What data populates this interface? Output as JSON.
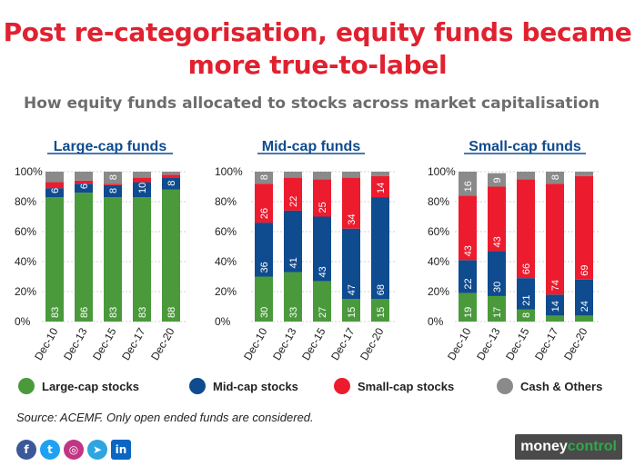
{
  "title_line1": "Post re-categorisation, equity funds became",
  "title_line2": "more true-to-label",
  "subtitle": "How equity funds allocated to stocks across market capitalisation",
  "colors": {
    "large": "#4a9a3c",
    "mid": "#0f4b8f",
    "small": "#ec1c2e",
    "cash": "#8a8a8a",
    "title": "#e0212f"
  },
  "legend": [
    {
      "label": "Large-cap stocks",
      "color": "#4a9a3c"
    },
    {
      "label": "Mid-cap stocks",
      "color": "#0f4b8f"
    },
    {
      "label": "Small-cap stocks",
      "color": "#ec1c2e"
    },
    {
      "label": "Cash & Others",
      "color": "#8a8a8a"
    }
  ],
  "source": "Source: ACEMF. Only open ended funds are considered.",
  "brand": {
    "part1": "money",
    "part2": "control"
  },
  "social": [
    "f",
    "t",
    "◎",
    "➤",
    "in"
  ],
  "chart_data": [
    {
      "type": "bar",
      "stacked": true,
      "title": "Large-cap funds",
      "categories": [
        "Dec-10",
        "Dec-13",
        "Dec-15",
        "Dec-17",
        "Dec-20"
      ],
      "yticks": [
        "0%",
        "20%",
        "40%",
        "60%",
        "80%",
        "100%"
      ],
      "ylim": [
        0,
        100
      ],
      "series": [
        {
          "name": "Large-cap stocks",
          "values": [
            83,
            86,
            83,
            83,
            88
          ],
          "labels": [
            "83",
            "86",
            "83",
            "83",
            "88"
          ]
        },
        {
          "name": "Mid-cap stocks",
          "values": [
            6,
            6,
            8,
            10,
            8
          ],
          "labels": [
            "6",
            "6",
            "8",
            "10",
            "8"
          ]
        },
        {
          "name": "Small-cap stocks",
          "values": [
            4,
            2,
            1,
            3,
            2
          ],
          "labels": [
            "",
            "",
            "",
            "",
            ""
          ]
        },
        {
          "name": "Cash & Others",
          "values": [
            7,
            6,
            8,
            4,
            2
          ],
          "labels": [
            "",
            "",
            "8",
            "",
            ""
          ]
        }
      ]
    },
    {
      "type": "bar",
      "stacked": true,
      "title": "Mid-cap funds",
      "categories": [
        "Dec-10",
        "Dec-13",
        "Dec-15",
        "Dec-17",
        "Dec-20"
      ],
      "yticks": [
        "0%",
        "20%",
        "40%",
        "60%",
        "80%",
        "100%"
      ],
      "ylim": [
        0,
        100
      ],
      "series": [
        {
          "name": "Large-cap stocks",
          "values": [
            30,
            33,
            27,
            15,
            15
          ],
          "labels": [
            "30",
            "33",
            "27",
            "15",
            "15"
          ]
        },
        {
          "name": "Mid-cap stocks",
          "values": [
            36,
            41,
            43,
            47,
            68
          ],
          "labels": [
            "36",
            "41",
            "43",
            "47",
            "68"
          ]
        },
        {
          "name": "Small-cap stocks",
          "values": [
            26,
            22,
            25,
            34,
            14
          ],
          "labels": [
            "26",
            "22",
            "25",
            "34",
            "14"
          ]
        },
        {
          "name": "Cash & Others",
          "values": [
            8,
            4,
            5,
            4,
            3
          ],
          "labels": [
            "8",
            "",
            "",
            "",
            ""
          ]
        }
      ]
    },
    {
      "type": "bar",
      "stacked": true,
      "title": "Small-cap funds",
      "categories": [
        "Dec-10",
        "Dec-13",
        "Dec-15",
        "Dec-17",
        "Dec-20"
      ],
      "yticks": [
        "0%",
        "20%",
        "40%",
        "60%",
        "80%",
        "100%"
      ],
      "ylim": [
        0,
        100
      ],
      "series": [
        {
          "name": "Large-cap stocks",
          "values": [
            19,
            17,
            8,
            4,
            4
          ],
          "labels": [
            "19",
            "17",
            "8",
            "",
            ""
          ]
        },
        {
          "name": "Mid-cap stocks",
          "values": [
            22,
            30,
            21,
            14,
            24
          ],
          "labels": [
            "22",
            "30",
            "21",
            "14",
            "24"
          ]
        },
        {
          "name": "Small-cap stocks",
          "values": [
            43,
            43,
            66,
            74,
            69
          ],
          "labels": [
            "43",
            "43",
            "66",
            "74",
            "69"
          ]
        },
        {
          "name": "Cash & Others",
          "values": [
            16,
            9,
            5,
            8,
            3
          ],
          "labels": [
            "16",
            "9",
            "",
            "8",
            ""
          ]
        }
      ]
    }
  ]
}
